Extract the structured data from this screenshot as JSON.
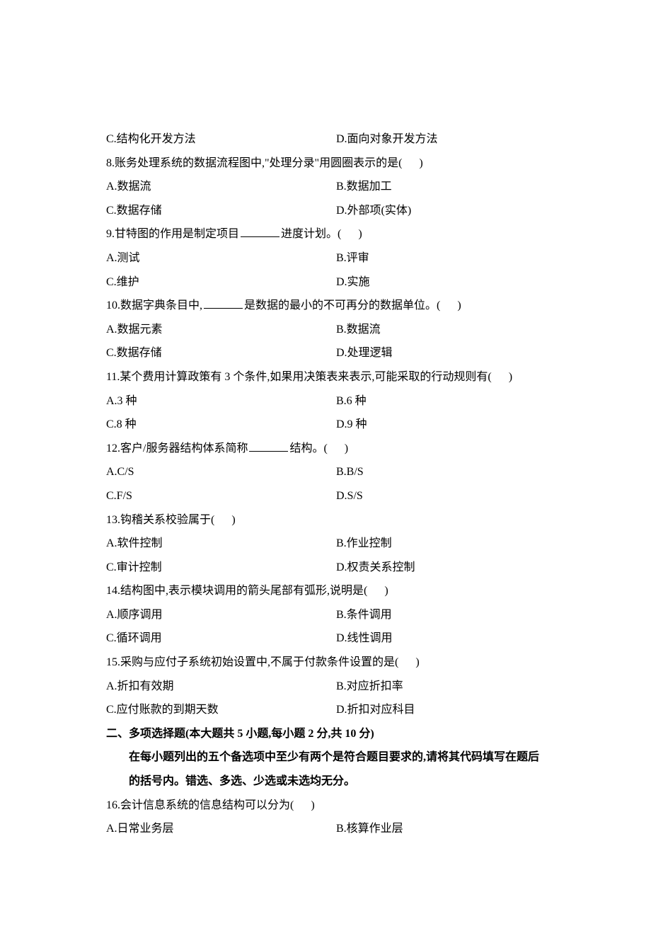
{
  "q7": {
    "optC": "C.结构化开发方法",
    "optD": "D.面向对象开发方法"
  },
  "q8": {
    "stem_pre": "8.账务处理系统的数据流程图中,\"处理分录\"用圆圈表示的是(",
    "stem_post": ")",
    "optA": "A.数据流",
    "optB": "B.数据加工",
    "optC": "C.数据存储",
    "optD": "D.外部项(实体)"
  },
  "q9": {
    "stem_pre": "9.甘特图的作用是制定项目",
    "stem_mid": "进度计划。(",
    "stem_post": ")",
    "optA": "A.测试",
    "optB": "B.评审",
    "optC": "C.维护",
    "optD": "D.实施"
  },
  "q10": {
    "stem_pre": "10.数据字典条目中,",
    "stem_mid": "是数据的最小的不可再分的数据单位。(",
    "stem_post": ")",
    "optA": "A.数据元素",
    "optB": "B.数据流",
    "optC": "C.数据存储",
    "optD": "D.处理逻辑"
  },
  "q11": {
    "stem_pre": "11.某个费用计算政策有 3 个条件,如果用决策表来表示,可能采取的行动规则有(",
    "stem_post": ")",
    "optA": "A.3 种",
    "optB": "B.6 种",
    "optC": "C.8 种",
    "optD": "D.9 种"
  },
  "q12": {
    "stem_pre": "12.客户/服务器结构体系简称",
    "stem_mid": "结构。(",
    "stem_post": ")",
    "optA": "A.C/S",
    "optB": "B.B/S",
    "optC": "C.F/S",
    "optD": "D.S/S"
  },
  "q13": {
    "stem_pre": "13.钩稽关系校验属于(",
    "stem_post": ")",
    "optA": "A.软件控制",
    "optB": "B.作业控制",
    "optC": "C.审计控制",
    "optD": "D.权责关系控制"
  },
  "q14": {
    "stem_pre": "14.结构图中,表示模块调用的箭头尾部有弧形,说明是(",
    "stem_post": ")",
    "optA": "A.顺序调用",
    "optB": "B.条件调用",
    "optC": "C.循环调用",
    "optD": "D.线性调用"
  },
  "q15": {
    "stem_pre": "15.采购与应付子系统初始设置中,不属于付款条件设置的是(",
    "stem_post": ")",
    "optA": "A.折扣有效期",
    "optB": "B.对应折扣率",
    "optC": "C.应付账款的到期天数",
    "optD": "D.折扣对应科目"
  },
  "section2": {
    "title": "二、多项选择题(本大题共 5 小题,每小题 2 分,共 10 分)",
    "note1": "在每小题列出的五个备选项中至少有两个是符合题目要求的,请将其代码填写在题后",
    "note2": "的括号内。错选、多选、少选或未选均无分。"
  },
  "q16": {
    "stem_pre": "16.会计信息系统的信息结构可以分为(",
    "stem_post": ")",
    "optA": "A.日常业务层",
    "optB": "B.核算作业层"
  },
  "style": {
    "paren_gap": "      "
  }
}
